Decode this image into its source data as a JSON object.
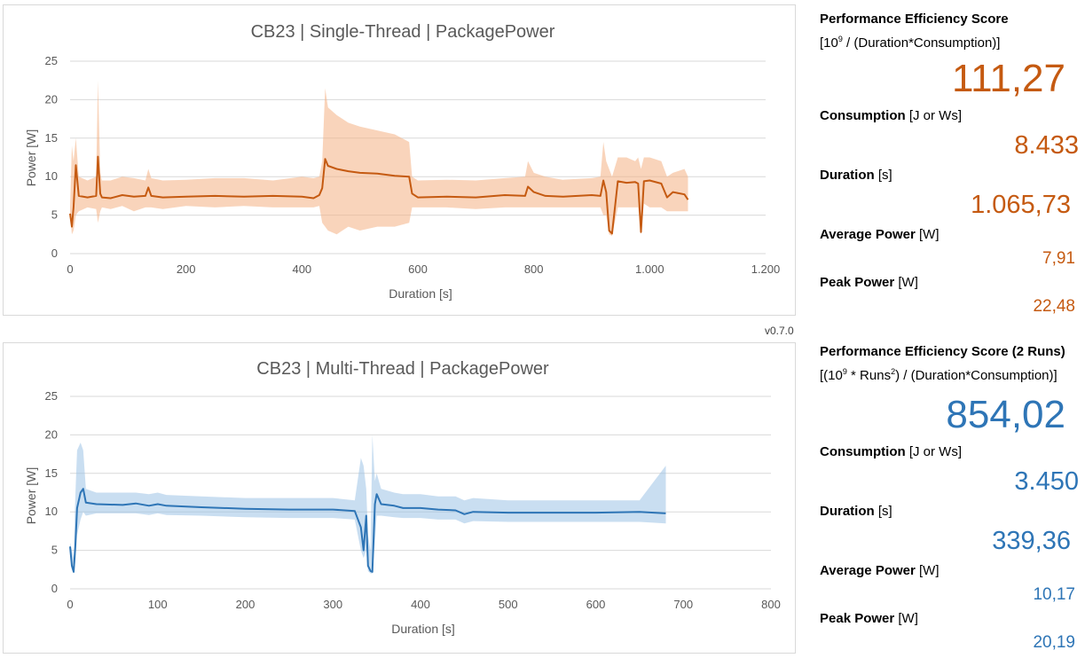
{
  "version": "v0.7.0",
  "colors": {
    "single": "#c55a11",
    "single_band": "#f4b183",
    "multi": "#2e75b6",
    "multi_band": "#9dc3e6"
  },
  "panels": {
    "single": {
      "score_label": "Performance Efficiency Score",
      "formula_open": "[10",
      "formula_exp": "9",
      "formula_rest": " / (Duration*Consumption)]",
      "score": "111,27",
      "consumption_label": "Consumption",
      "consumption_unit": " [J or Ws]",
      "consumption": "8.433",
      "duration_label": "Duration",
      "duration_unit": " [s]",
      "duration": "1.065,73",
      "avg_label": "Average Power",
      "avg_unit": " [W]",
      "avg": "7,91",
      "peak_label": "Peak Power",
      "peak_unit": " [W]",
      "peak": "22,48"
    },
    "multi": {
      "score_label": "Performance Efficiency Score (2 Runs)",
      "formula_open": "[(10",
      "formula_exp": "9",
      "formula_mid": " * Runs",
      "formula_exp2": "2",
      "formula_rest": ") / (Duration*Consumption)]",
      "score": "854,02",
      "consumption_label": "Consumption",
      "consumption_unit": " [J or Ws]",
      "consumption": "3.450",
      "duration_label": "Duration",
      "duration_unit": " [s]",
      "duration": "339,36",
      "avg_label": "Average Power",
      "avg_unit": " [W]",
      "avg": "10,17",
      "peak_label": "Peak Power",
      "peak_unit": " [W]",
      "peak": "20,19"
    }
  },
  "chart_data": [
    {
      "type": "line",
      "title": "CB23 | Single-Thread | PackagePower",
      "xlabel": "Duration [s]",
      "ylabel": "Power [W]",
      "xlim": [
        0,
        1200
      ],
      "ylim": [
        0,
        25
      ],
      "xticks": [
        0,
        200,
        400,
        600,
        800,
        1000,
        1200
      ],
      "xtick_labels": [
        "0",
        "200",
        "400",
        "600",
        "800",
        "1.000",
        "1.200"
      ],
      "yticks": [
        0,
        5,
        10,
        15,
        20,
        25
      ],
      "ytick_labels": [
        "0",
        "5",
        "10",
        "15",
        "20",
        "25"
      ],
      "grid": true,
      "series": [
        {
          "x": [
            0,
            3,
            6,
            10,
            15,
            30,
            45,
            48,
            52,
            55,
            70,
            90,
            110,
            130,
            135,
            140,
            160,
            200,
            250,
            300,
            350,
            400,
            420,
            430,
            435,
            440,
            445,
            460,
            480,
            500,
            530,
            560,
            585,
            590,
            600,
            650,
            700,
            750,
            785,
            790,
            800,
            820,
            850,
            900,
            915,
            920,
            925,
            930,
            935,
            945,
            960,
            975,
            980,
            985,
            990,
            1000,
            1020,
            1030,
            1040,
            1060,
            1066
          ],
          "y": [
            5.2,
            3.5,
            6,
            11.5,
            7.5,
            7.3,
            7.5,
            12.6,
            7.8,
            7.3,
            7.2,
            7.6,
            7.4,
            7.5,
            8.6,
            7.5,
            7.3,
            7.4,
            7.5,
            7.4,
            7.5,
            7.4,
            7.2,
            7.6,
            8.5,
            12.3,
            11.4,
            11.0,
            10.7,
            10.5,
            10.4,
            10.1,
            10.0,
            7.8,
            7.3,
            7.4,
            7.3,
            7.6,
            7.5,
            8.7,
            8.0,
            7.5,
            7.4,
            7.6,
            7.5,
            9.5,
            8.0,
            3.0,
            2.6,
            9.4,
            9.2,
            9.3,
            9.1,
            2.8,
            9.4,
            9.5,
            9.1,
            7.3,
            8.0,
            7.7,
            7.0
          ],
          "band_lo": [
            5,
            2.5,
            3,
            5,
            5.5,
            6,
            5.8,
            4,
            5.5,
            6,
            5.8,
            6.2,
            5.5,
            6,
            6,
            6,
            5.8,
            6.2,
            6,
            6.2,
            6,
            6,
            6,
            6.2,
            4,
            3.5,
            3,
            2.5,
            3.5,
            3,
            3.5,
            3.5,
            4,
            6,
            6,
            6,
            5.8,
            6,
            6,
            6,
            6,
            6,
            6,
            6,
            6,
            5,
            5,
            2.5,
            2.3,
            6,
            6,
            6,
            6,
            2.5,
            6.5,
            6,
            6,
            5.5,
            5.5,
            5.5,
            5.5
          ],
          "band_hi": [
            6,
            14,
            12,
            15,
            10,
            9.5,
            10,
            22.5,
            10.5,
            9.5,
            9.5,
            10,
            9.8,
            9.5,
            11,
            9.8,
            9.5,
            9.6,
            9.8,
            9.8,
            9.5,
            10,
            9.8,
            10,
            12,
            21.5,
            19,
            18,
            17,
            16.5,
            16,
            15.5,
            14.5,
            10,
            9.5,
            9.6,
            9.5,
            9.8,
            10,
            12,
            10.5,
            10,
            9.6,
            9.8,
            10,
            14.5,
            12,
            11,
            10,
            12.5,
            12.5,
            12,
            12.5,
            11,
            12.5,
            12.5,
            12,
            10,
            10.5,
            11,
            10
          ]
        }
      ]
    },
    {
      "type": "line",
      "title": "CB23 | Multi-Thread | PackagePower",
      "xlabel": "Duration [s]",
      "ylabel": "Power [W]",
      "xlim": [
        0,
        800
      ],
      "ylim": [
        0,
        25
      ],
      "xticks": [
        0,
        100,
        200,
        300,
        400,
        500,
        600,
        700,
        800
      ],
      "xtick_labels": [
        "0",
        "100",
        "200",
        "300",
        "400",
        "500",
        "600",
        "700",
        "800"
      ],
      "yticks": [
        0,
        5,
        10,
        15,
        20,
        25
      ],
      "ytick_labels": [
        "0",
        "5",
        "10",
        "15",
        "20",
        "25"
      ],
      "grid": true,
      "series": [
        {
          "x": [
            0,
            2,
            4,
            6,
            8,
            12,
            15,
            18,
            30,
            60,
            75,
            90,
            100,
            110,
            150,
            200,
            250,
            300,
            325,
            332,
            335,
            338,
            340,
            343,
            345,
            348,
            350,
            355,
            370,
            380,
            400,
            420,
            440,
            450,
            460,
            500,
            550,
            600,
            650,
            680
          ],
          "y": [
            5.5,
            3,
            2.2,
            5.5,
            10.5,
            12.5,
            13,
            11.2,
            11,
            10.9,
            11.1,
            10.8,
            11.0,
            10.8,
            10.6,
            10.4,
            10.3,
            10.3,
            10.1,
            8,
            5,
            9.5,
            3,
            2.3,
            2.2,
            11,
            12.3,
            11.0,
            10.8,
            10.5,
            10.5,
            10.3,
            10.2,
            9.7,
            10.0,
            9.9,
            9.9,
            9.9,
            10.0,
            9.8
          ],
          "band_lo": [
            5,
            2.5,
            2,
            3.5,
            7,
            9,
            10,
            9.5,
            9.8,
            9.8,
            9.8,
            9.6,
            9.8,
            9.6,
            9.5,
            9.3,
            9.2,
            9.2,
            9,
            5,
            4,
            5,
            2.3,
            2,
            2,
            6,
            9.5,
            9.5,
            9.3,
            9.2,
            9.2,
            9,
            9,
            8.5,
            8.8,
            8.7,
            8.7,
            8.7,
            8.7,
            8.5
          ],
          "band_hi": [
            6,
            5,
            4,
            12,
            18,
            19,
            18,
            13,
            12.5,
            12.5,
            12.5,
            12.3,
            12.5,
            12.2,
            12,
            11.8,
            11.8,
            11.8,
            11.5,
            17,
            16,
            13,
            7,
            5,
            20,
            14,
            15,
            13,
            12.5,
            12.3,
            12.3,
            12,
            12,
            11.5,
            11.8,
            11.5,
            11.5,
            11.5,
            11.5,
            16
          ]
        }
      ]
    }
  ]
}
